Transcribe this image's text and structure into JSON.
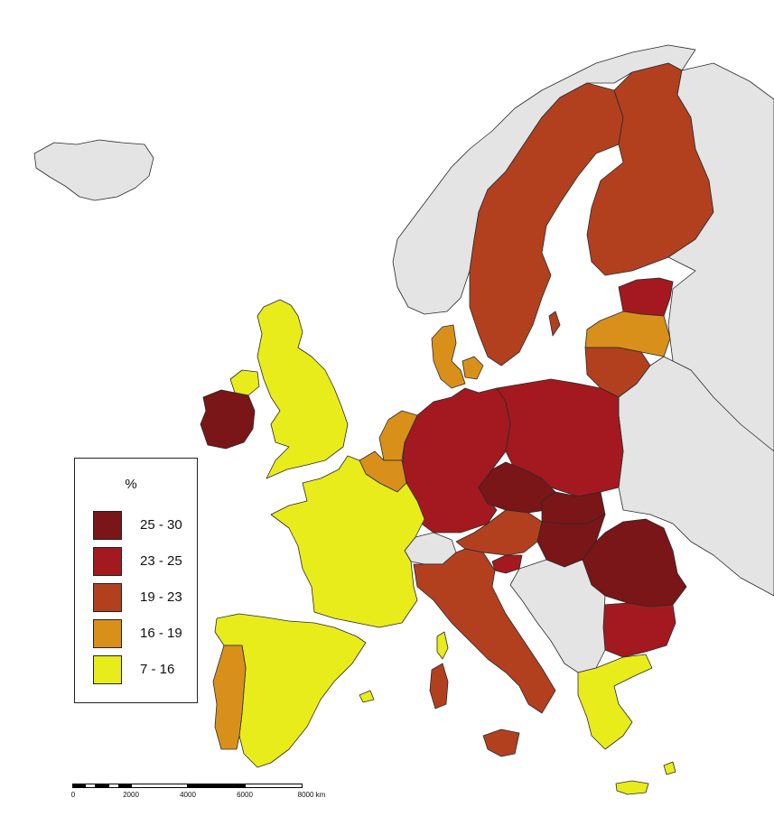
{
  "colors": {
    "land_nodata": "#e4e4e4",
    "sea": "#ffffff",
    "border": "#2a2a2a",
    "class_25_30": "#7a1518",
    "class_23_25": "#a3191f",
    "class_19_23": "#b2401f",
    "class_16_19": "#d9901a",
    "class_7_16": "#e8ec1a"
  },
  "legend": {
    "title": "%",
    "items": [
      {
        "label": "25 - 30",
        "color": "#7a1518"
      },
      {
        "label": "23 - 25",
        "color": "#a3191f"
      },
      {
        "label": "19 - 23",
        "color": "#b2401f"
      },
      {
        "label": "16 - 19",
        "color": "#d9901a"
      },
      {
        "label": "7 - 16",
        "color": "#e8ec1a"
      }
    ]
  },
  "scale": {
    "labels": [
      "0",
      "2000",
      "4000",
      "6000",
      "8000 km"
    ]
  }
}
